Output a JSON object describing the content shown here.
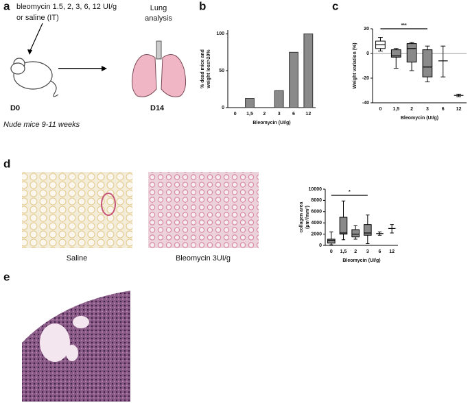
{
  "panel_labels": [
    "a",
    "b",
    "c",
    "d",
    "e"
  ],
  "panel_a": {
    "treatment": "bleomycin 1.5, 2, 3, 6, 12 UI/g",
    "treatment_2": "or saline (IT)",
    "readout": "Lung",
    "readout_2": "analysis",
    "start": "D0",
    "end": "D14",
    "mice": "Nude mice 9-11 weeks"
  },
  "panel_d": {
    "captions": [
      "Saline",
      "Bleomycin 3UI/g"
    ]
  },
  "chart_data": [
    {
      "type": "bar",
      "y_label": [
        "% dead mice and",
        "weight loss>20%"
      ],
      "x_label": "Bleomycin (UI/g)",
      "categories": [
        "0",
        "1,5",
        "2",
        "3",
        "6",
        "12"
      ],
      "values": [
        0,
        12.5,
        0,
        23,
        75,
        100
      ],
      "color": "#8a8a8a",
      "ylim": [
        0,
        105
      ],
      "yticks": [
        0,
        50,
        100
      ]
    },
    {
      "type": "box",
      "y_label": [
        "Weight variation (%)"
      ],
      "x_label": "Bleomycin (UI/g)",
      "annotation": "***",
      "categories": [
        "0",
        "1,5",
        "2",
        "3",
        "6",
        "12"
      ],
      "min": [
        2,
        -12,
        -14,
        -23,
        -19,
        -35
      ],
      "q1": [
        4,
        -3,
        -7,
        -19,
        null,
        null
      ],
      "median": [
        7,
        -2,
        4,
        -11,
        -6,
        -34
      ],
      "q3": [
        10,
        3,
        8,
        3,
        null,
        null
      ],
      "max": [
        13,
        4,
        9,
        6,
        6,
        -33
      ],
      "box_colors": [
        "#ffffff",
        "#8a8a8a",
        "#8a8a8a",
        "#8a8a8a",
        "#8a8a8a",
        "#8a8a8a"
      ],
      "reference_line": 0,
      "ylim": [
        -40,
        20
      ],
      "yticks": [
        20,
        0,
        -20,
        -40
      ]
    },
    {
      "type": "box",
      "y_label": [
        "collagen area",
        "(µm²/mm²)"
      ],
      "x_label": "Bleomycin (UI/g)",
      "annotation": "*",
      "categories": [
        "0",
        "1,5",
        "2",
        "3",
        "6",
        "12"
      ],
      "min": [
        100,
        1000,
        1100,
        300,
        1800,
        2200
      ],
      "q1": [
        400,
        2000,
        1500,
        1800,
        null,
        null
      ],
      "median": [
        900,
        2200,
        2000,
        2200,
        2100,
        3000
      ],
      "q3": [
        1100,
        5000,
        2800,
        3700,
        null,
        null
      ],
      "max": [
        2400,
        7900,
        3500,
        5400,
        2400,
        3700
      ],
      "box_colors": [
        "#8a8a8a",
        "#8a8a8a",
        "#8a8a8a",
        "#8a8a8a",
        "#8a8a8a",
        "#8a8a8a"
      ],
      "ylim": [
        0,
        10000
      ],
      "yticks": [
        0,
        2000,
        4000,
        6000,
        8000,
        10000
      ]
    }
  ]
}
